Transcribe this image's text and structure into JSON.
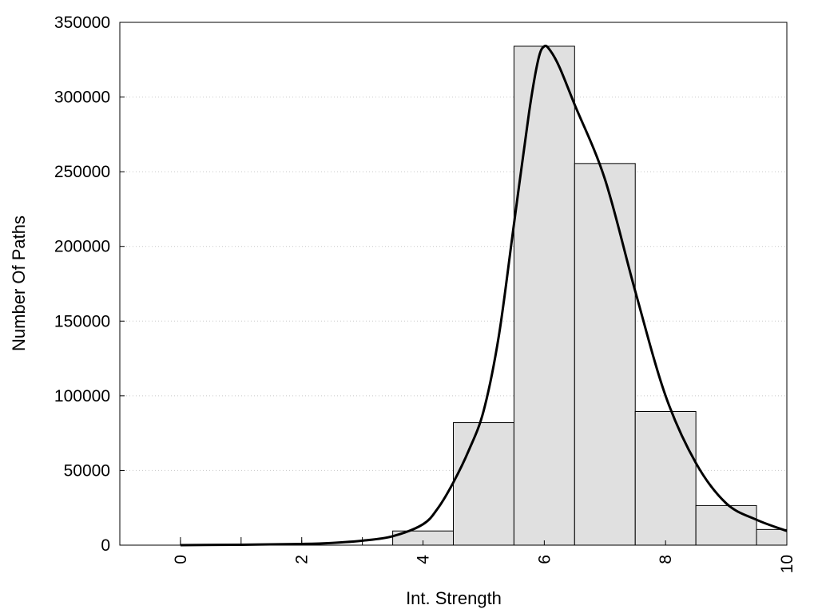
{
  "chart_data": {
    "type": "bar",
    "title": "",
    "xlabel": "Int. Strength",
    "ylabel": "Number Of Paths",
    "xlim": [
      -1,
      10
    ],
    "ylim": [
      0,
      350000
    ],
    "x_ticks": [
      0,
      2,
      4,
      6,
      8,
      10
    ],
    "y_ticks": [
      0,
      50000,
      100000,
      150000,
      200000,
      250000,
      300000,
      350000
    ],
    "grid": "horizontal-dotted",
    "legend": "none",
    "bar_color": "#e0e0e0",
    "bar_edge_color": "#000000",
    "bins": [
      {
        "start": 3.5,
        "end": 4.5,
        "value": 9500
      },
      {
        "start": 4.5,
        "end": 5.5,
        "value": 82000
      },
      {
        "start": 5.5,
        "end": 6.5,
        "value": 334000
      },
      {
        "start": 6.5,
        "end": 7.5,
        "value": 255500
      },
      {
        "start": 7.5,
        "end": 8.5,
        "value": 89500
      },
      {
        "start": 8.5,
        "end": 9.5,
        "value": 26500
      },
      {
        "start": 9.5,
        "end": 10,
        "value": 10500
      }
    ],
    "curve": {
      "x": [
        0,
        1,
        2,
        2.5,
        3,
        3.5,
        4,
        4.25,
        4.5,
        4.75,
        5,
        5.25,
        5.5,
        5.75,
        5.9,
        6,
        6.1,
        6.25,
        6.5,
        7,
        7.5,
        8,
        8.5,
        9,
        9.5,
        10
      ],
      "y": [
        0,
        300,
        800,
        1500,
        3000,
        6000,
        14000,
        25000,
        42000,
        63000,
        90000,
        140000,
        215000,
        290000,
        325000,
        334000,
        331000,
        320000,
        295000,
        245000,
        170000,
        100000,
        55000,
        28000,
        17000,
        9500
      ]
    }
  }
}
